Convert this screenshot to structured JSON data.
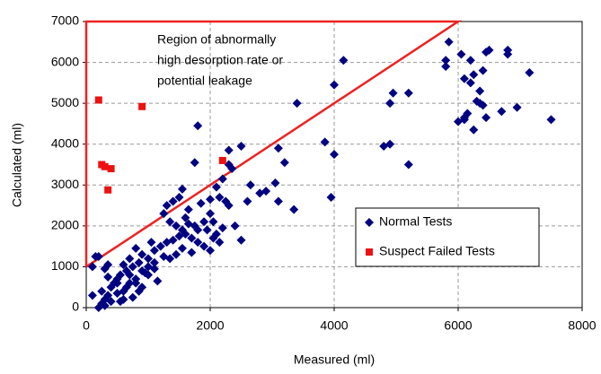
{
  "chart_data": {
    "type": "scatter",
    "x_label": "Measured (ml)",
    "y_label": "Calculated (ml)",
    "annotation": [
      "Region of abnormally",
      "high desorption rate or",
      "potential leakage"
    ],
    "xlim": [
      0,
      8000
    ],
    "xticks": [
      0,
      2000,
      4000,
      6000,
      8000
    ],
    "ylim": [
      0,
      7000
    ],
    "yticks": [
      0,
      1000,
      2000,
      3000,
      4000,
      5000,
      6000,
      7000
    ],
    "grid": true,
    "legend": "lower right",
    "region_boundary": {
      "color": "#ee2222",
      "x": [
        0,
        0,
        6000,
        0
      ],
      "y": [
        1000,
        7000,
        7000,
        1000
      ]
    },
    "series": [
      {
        "name": "Normal Tests",
        "color": "#000080",
        "marker": "diamond",
        "x": [
          5850,
          5800,
          5800,
          6050,
          6100,
          6200,
          6200,
          6250,
          6350,
          6400,
          6500,
          6450,
          6800,
          6800,
          7150,
          6000,
          6100,
          6150,
          6100,
          6250,
          6300,
          6400,
          6450,
          6700,
          6950,
          7500,
          6350,
          4150,
          4000,
          4950,
          4900,
          5200,
          4800,
          4900,
          5200,
          3850,
          4000,
          3950,
          3350,
          3400,
          3100,
          3200,
          3050,
          3100,
          2900,
          2800,
          2650,
          2600,
          2500,
          2300,
          2300,
          2350,
          2200,
          2150,
          2100,
          2250,
          2400,
          2200,
          2300,
          2500,
          2000,
          2050,
          2000,
          1850,
          1750,
          1800,
          1650,
          1600,
          1550,
          1500,
          1400,
          1300,
          1250,
          1350,
          1450,
          1550,
          1600,
          1700,
          1800,
          1900,
          2000,
          2100,
          1950,
          1750,
          1650,
          1500,
          1400,
          1300,
          1200,
          1100,
          1050,
          1000,
          900,
          850,
          800,
          750,
          700,
          650,
          600,
          550,
          500,
          450,
          400,
          350,
          300,
          250,
          200,
          300,
          400,
          500,
          600,
          700,
          800,
          900,
          1000,
          1100,
          1150,
          1250,
          1350,
          1450,
          1550,
          1700,
          1800,
          1900,
          2050,
          2150,
          1000,
          900,
          650,
          550,
          750,
          850,
          300,
          350,
          200,
          100,
          150,
          100,
          250,
          350,
          500,
          600,
          700,
          800,
          950,
          1100
        ],
        "values": [
          6500,
          6050,
          5900,
          6200,
          5600,
          6050,
          5500,
          5700,
          5300,
          5800,
          6300,
          6250,
          6300,
          6200,
          5750,
          4550,
          4650,
          4750,
          4600,
          4350,
          5050,
          4950,
          4650,
          4800,
          4900,
          4600,
          5000,
          6050,
          5450,
          5250,
          5000,
          5250,
          3950,
          4000,
          3500,
          4050,
          3750,
          2700,
          2400,
          5000,
          3900,
          3550,
          3050,
          2600,
          2850,
          2800,
          3000,
          2600,
          3950,
          3850,
          3500,
          3400,
          3150,
          2700,
          2950,
          2600,
          2000,
          1950,
          2500,
          1650,
          2300,
          2100,
          2650,
          2550,
          3550,
          4450,
          2400,
          2200,
          2900,
          2700,
          2600,
          2500,
          2300,
          2100,
          2000,
          1900,
          1800,
          1700,
          1600,
          1500,
          1400,
          1800,
          1900,
          2000,
          2050,
          1750,
          1650,
          1600,
          1500,
          1400,
          1600,
          1200,
          1300,
          1100,
          1450,
          1000,
          1200,
          900,
          1050,
          800,
          700,
          600,
          500,
          300,
          200,
          100,
          0,
          50,
          150,
          350,
          400,
          600,
          700,
          500,
          800,
          950,
          650,
          1250,
          1200,
          1300,
          1450,
          1350,
          1900,
          2100,
          1700,
          1600,
          1000,
          900,
          500,
          150,
          250,
          400,
          950,
          1050,
          1250,
          1000,
          1250,
          300,
          400,
          750,
          600,
          200,
          800,
          600,
          850,
          1100
        ]
      },
      {
        "name": "Suspect Failed Tests",
        "color": "#ee1111",
        "marker": "square",
        "x": [
          200,
          250,
          300,
          400,
          350,
          900,
          2200
        ],
        "values": [
          5080,
          3500,
          3450,
          3400,
          2880,
          4920,
          3600
        ]
      }
    ]
  }
}
